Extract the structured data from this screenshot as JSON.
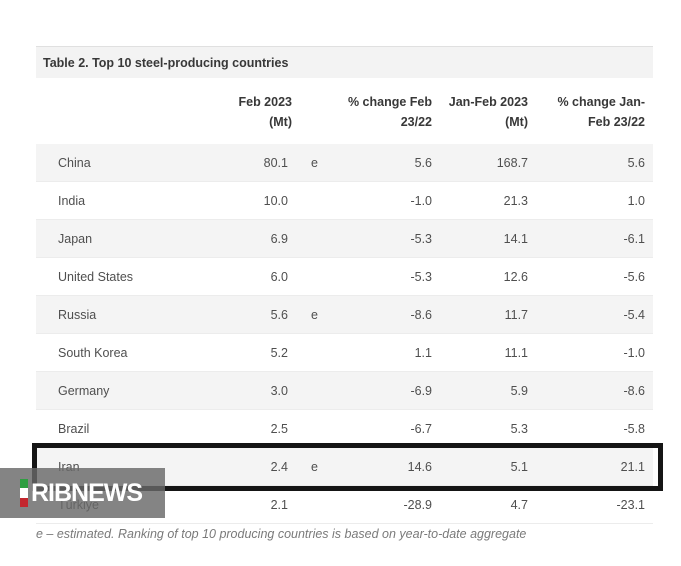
{
  "table": {
    "title": "Table 2. Top 10 steel-producing countries",
    "columns": {
      "feb": "Feb 2023 (Mt)",
      "pct_feb": "% change Feb\n23/22",
      "janfeb": "Jan-Feb 2023\n(Mt)",
      "pct_janfeb": "% change Jan-\nFeb 23/22"
    },
    "rows": [
      {
        "country": "China",
        "feb": "80.1",
        "flag": "e",
        "pct_feb": "5.6",
        "janfeb": "168.7",
        "pct_janfeb": "5.6",
        "highlight": false
      },
      {
        "country": "India",
        "feb": "10.0",
        "flag": "",
        "pct_feb": "-1.0",
        "janfeb": "21.3",
        "pct_janfeb": "1.0",
        "highlight": false
      },
      {
        "country": "Japan",
        "feb": "6.9",
        "flag": "",
        "pct_feb": "-5.3",
        "janfeb": "14.1",
        "pct_janfeb": "-6.1",
        "highlight": false
      },
      {
        "country": "United States",
        "feb": "6.0",
        "flag": "",
        "pct_feb": "-5.3",
        "janfeb": "12.6",
        "pct_janfeb": "-5.6",
        "highlight": false
      },
      {
        "country": "Russia",
        "feb": "5.6",
        "flag": "e",
        "pct_feb": "-8.6",
        "janfeb": "11.7",
        "pct_janfeb": "-5.4",
        "highlight": false
      },
      {
        "country": "South Korea",
        "feb": "5.2",
        "flag": "",
        "pct_feb": "1.1",
        "janfeb": "11.1",
        "pct_janfeb": "-1.0",
        "highlight": false
      },
      {
        "country": "Germany",
        "feb": "3.0",
        "flag": "",
        "pct_feb": "-6.9",
        "janfeb": "5.9",
        "pct_janfeb": "-8.6",
        "highlight": false
      },
      {
        "country": "Brazil",
        "feb": "2.5",
        "flag": "",
        "pct_feb": "-6.7",
        "janfeb": "5.3",
        "pct_janfeb": "-5.8",
        "highlight": false
      },
      {
        "country": "Iran",
        "feb": "2.4",
        "flag": "e",
        "pct_feb": "14.6",
        "janfeb": "5.1",
        "pct_janfeb": "21.1",
        "highlight": true
      },
      {
        "country": "Türkiye",
        "feb": "2.1",
        "flag": "",
        "pct_feb": "-28.9",
        "janfeb": "4.7",
        "pct_janfeb": "-23.1",
        "highlight": false
      }
    ],
    "footnote": "e – estimated. Ranking of top 10 producing countries is based on year-to-date aggregate"
  },
  "watermark": {
    "text": "RIBNEWS",
    "flag_colors": [
      "#2e9e41",
      "#ffffff",
      "#c3272e"
    ]
  },
  "colors": {
    "highlight_border": "#151515",
    "row_alt": "#f4f4f4",
    "title_bg": "#f3f3f3"
  }
}
